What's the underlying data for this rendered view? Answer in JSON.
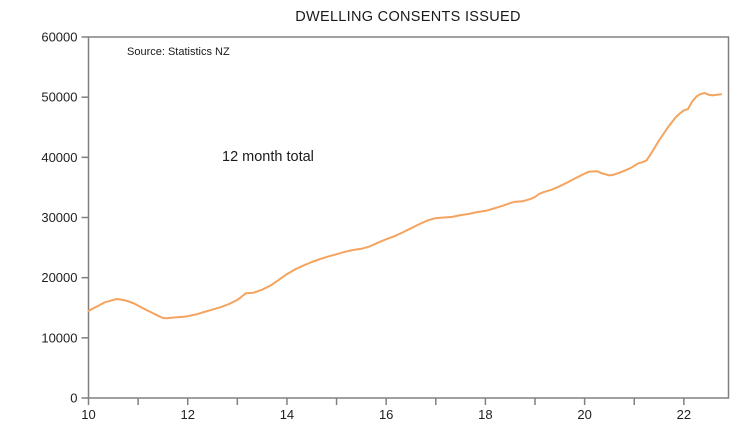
{
  "chart": {
    "title": "DWELLING CONSENTS ISSUED",
    "source_note": "Source: Statistics NZ",
    "annotation": "12 month total"
  },
  "colors": {
    "line": "#F5A45F",
    "axis": "#808080",
    "text": "#1F1F1F",
    "background": "#FFFFFF"
  },
  "chart_data": {
    "type": "line",
    "title": "DWELLING CONSENTS ISSUED",
    "xlabel": "",
    "ylabel": "",
    "xlim": [
      10,
      22.9
    ],
    "ylim": [
      0,
      60000
    ],
    "grid": false,
    "legend": "none",
    "x_ticks": [
      10,
      11,
      12,
      13,
      14,
      15,
      16,
      17,
      18,
      19,
      20,
      21,
      22
    ],
    "x_labeled_ticks": [
      10,
      12,
      14,
      16,
      18,
      20,
      22
    ],
    "y_ticks": [
      0,
      10000,
      20000,
      30000,
      40000,
      50000,
      60000
    ],
    "series": [
      {
        "name": "Dwelling consents issued, 12 month total",
        "x": [
          10.0,
          10.17,
          10.33,
          10.5,
          10.58,
          10.75,
          10.92,
          11.08,
          11.25,
          11.42,
          11.5,
          11.58,
          11.75,
          11.92,
          12.0,
          12.17,
          12.33,
          12.5,
          12.67,
          12.83,
          13.0,
          13.08,
          13.17,
          13.33,
          13.5,
          13.67,
          13.83,
          14.0,
          14.17,
          14.33,
          14.5,
          14.67,
          14.83,
          15.0,
          15.17,
          15.33,
          15.5,
          15.67,
          15.83,
          16.0,
          16.17,
          16.33,
          16.5,
          16.67,
          16.83,
          17.0,
          17.17,
          17.33,
          17.5,
          17.67,
          17.83,
          18.0,
          18.17,
          18.33,
          18.5,
          18.58,
          18.75,
          18.92,
          19.0,
          19.08,
          19.17,
          19.33,
          19.5,
          19.67,
          19.83,
          20.0,
          20.08,
          20.25,
          20.33,
          20.5,
          20.58,
          20.75,
          20.92,
          21.0,
          21.08,
          21.17,
          21.25,
          21.33,
          21.5,
          21.67,
          21.83,
          21.92,
          22.0,
          22.08,
          22.17,
          22.25,
          22.33,
          22.42,
          22.5,
          22.58,
          22.67,
          22.75
        ],
        "y": [
          14500,
          15200,
          15900,
          16300,
          16450,
          16200,
          15700,
          15000,
          14300,
          13600,
          13300,
          13250,
          13400,
          13500,
          13600,
          13900,
          14300,
          14700,
          15100,
          15600,
          16300,
          16800,
          17400,
          17500,
          18000,
          18700,
          19600,
          20600,
          21400,
          22000,
          22600,
          23100,
          23500,
          23900,
          24300,
          24600,
          24800,
          25200,
          25800,
          26400,
          26900,
          27500,
          28200,
          28900,
          29500,
          29900,
          30000,
          30100,
          30400,
          30600,
          30900,
          31100,
          31500,
          31900,
          32400,
          32600,
          32700,
          33100,
          33400,
          33900,
          34200,
          34600,
          35200,
          35900,
          36600,
          37300,
          37600,
          37700,
          37400,
          37000,
          37100,
          37600,
          38200,
          38600,
          39000,
          39200,
          39500,
          40500,
          42800,
          44900,
          46600,
          47300,
          47800,
          48000,
          49300,
          50100,
          50500,
          50700,
          50400,
          50300,
          50400,
          50500
        ]
      }
    ]
  }
}
